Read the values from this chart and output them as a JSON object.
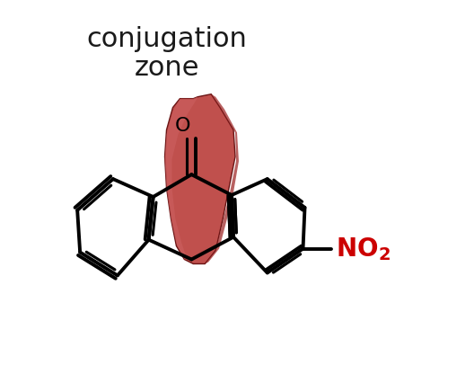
{
  "title_line1": "conjugation",
  "title_line2": "zone",
  "title_color": "#1a1a1a",
  "title_fontsize": 22,
  "no2_color": "#cc0000",
  "no2_fontsize": 20,
  "ribbon_color": "#c0504d",
  "ribbon_highlight": "#d47070",
  "ribbon_dark": "#8b2020",
  "background": "#ffffff",
  "bond_color": "#000000",
  "bond_lw": 2.8,
  "fig_width": 5.28,
  "fig_height": 4.27
}
